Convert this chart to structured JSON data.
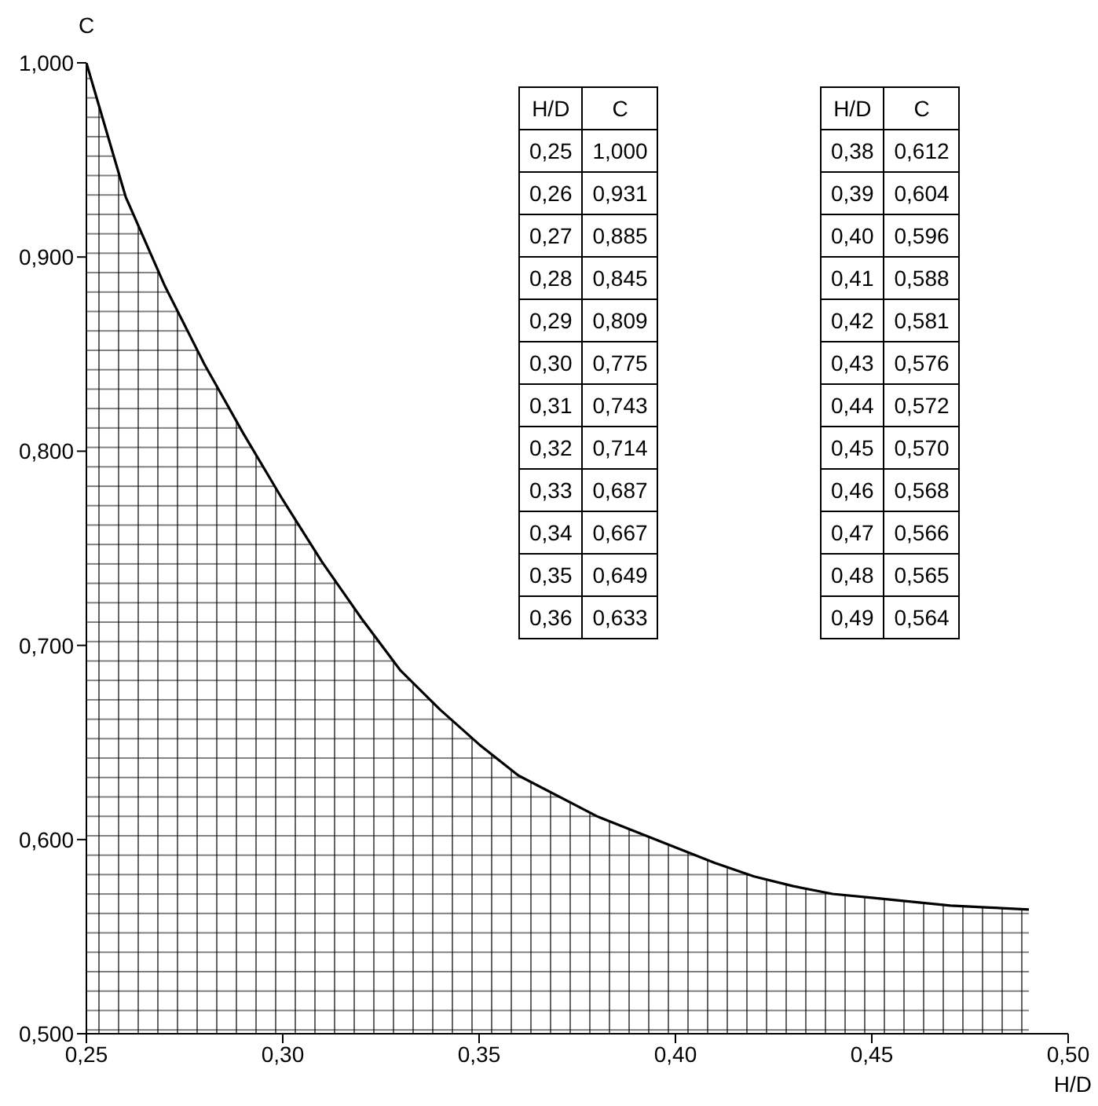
{
  "chart_data": {
    "type": "area",
    "xlabel": "H/D",
    "ylabel": "C",
    "color": "#000000",
    "x": [
      0.25,
      0.26,
      0.27,
      0.28,
      0.29,
      0.3,
      0.31,
      0.32,
      0.33,
      0.34,
      0.35,
      0.36,
      0.38,
      0.39,
      0.4,
      0.41,
      0.42,
      0.43,
      0.44,
      0.45,
      0.46,
      0.47,
      0.48,
      0.49
    ],
    "values": [
      1.0,
      0.931,
      0.885,
      0.845,
      0.809,
      0.775,
      0.743,
      0.714,
      0.687,
      0.667,
      0.649,
      0.633,
      0.612,
      0.604,
      0.596,
      0.588,
      0.581,
      0.576,
      0.572,
      0.57,
      0.568,
      0.566,
      0.565,
      0.564
    ],
    "annotations": [
      "H/D",
      "C",
      "0,25",
      "1,000",
      "0,26",
      "0,931",
      "0,27",
      "0,885",
      "0,28",
      "0,845",
      "0,29",
      "0,809",
      "0,30",
      "0,775",
      "0,31",
      "0,743",
      "0,32",
      "0,714",
      "0,33",
      "0,687",
      "0,34",
      "0,667",
      "0,35",
      "0,649",
      "0,36",
      "0,633",
      "H/D",
      "C",
      "0,38",
      "0,612",
      "0,39",
      "0,604",
      "0,40",
      "0,596",
      "0,41",
      "0,588",
      "0,42",
      "0,581",
      "0,43",
      "0,576",
      "0,44",
      "0,572",
      "0,45",
      "0,570",
      "0,46",
      "0,568",
      "0,47",
      "0,566",
      "0,48",
      "0,565",
      "0,49",
      "0,564"
    ],
    "xlim": [
      0.25,
      0.5
    ],
    "xticks": [
      {
        "value": 0.25,
        "label": "0,25"
      },
      {
        "value": 0.3,
        "label": "0,30"
      },
      {
        "value": 0.35,
        "label": "0,35"
      },
      {
        "value": 0.4,
        "label": "0,40"
      },
      {
        "value": 0.45,
        "label": "0,45"
      },
      {
        "value": 0.5,
        "label": "0,50"
      }
    ],
    "ylim": [
      0.5,
      1.0
    ],
    "yticks": [
      {
        "value": 0.5,
        "label": "0,500"
      },
      {
        "value": 0.6,
        "label": "0,600"
      },
      {
        "value": 0.7,
        "label": "0,700"
      },
      {
        "value": 0.8,
        "label": "0,800"
      },
      {
        "value": 0.9,
        "label": "0,900"
      },
      {
        "value": 1.0,
        "label": "1,000"
      }
    ]
  }
}
